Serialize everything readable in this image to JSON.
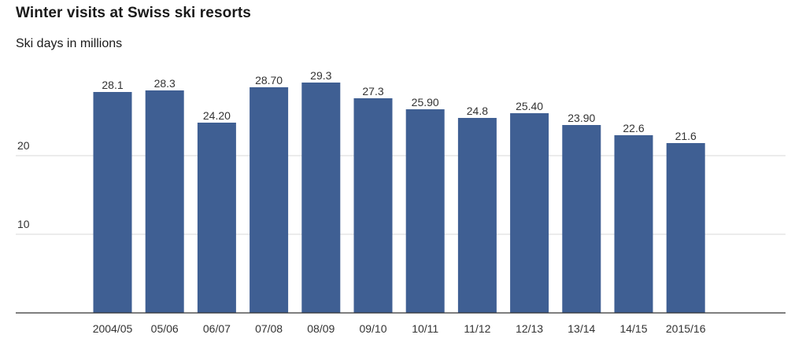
{
  "header": {
    "title": "Winter visits at Swiss ski resorts",
    "subtitle": "Ski days in millions"
  },
  "chart_data": {
    "type": "bar",
    "title": "Winter visits at Swiss ski resorts",
    "subtitle": "Ski days in millions",
    "xlabel": "",
    "ylabel": "",
    "categories": [
      "2004/05",
      "05/06",
      "06/07",
      "07/08",
      "08/09",
      "09/10",
      "10/11",
      "11/12",
      "12/13",
      "13/14",
      "14/15",
      "2015/16"
    ],
    "values": [
      28.1,
      28.3,
      24.2,
      28.7,
      29.3,
      27.3,
      25.9,
      24.8,
      25.4,
      23.9,
      22.6,
      21.6
    ],
    "value_labels": [
      "28.1",
      "28.3",
      "24.20",
      "28.70",
      "29.3",
      "27.3",
      "25.90",
      "24.8",
      "25.40",
      "23.90",
      "22.6",
      "21.6"
    ],
    "y_ticks": [
      10,
      20
    ],
    "y_tick_labels": [
      "10",
      "20"
    ],
    "ylim": [
      0,
      30
    ],
    "grid": true,
    "legend": "none",
    "bar_color": "#3f5f93"
  }
}
